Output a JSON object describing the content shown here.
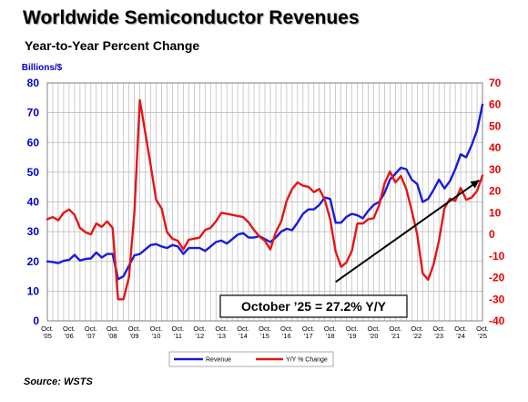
{
  "title": "Worldwide Semiconductor Revenues",
  "subtitle": "Year-to-Year Percent Change",
  "source": "Source: WSTS",
  "chart_data": {
    "type": "line",
    "left_axis": {
      "label": "Billions/$",
      "ylim": [
        0,
        80
      ],
      "ticks": [
        0,
        10,
        20,
        30,
        40,
        50,
        60,
        70,
        80
      ]
    },
    "right_axis": {
      "ylim": [
        -40,
        70
      ],
      "ticks": [
        -40,
        -30,
        -20,
        -10,
        0,
        10,
        20,
        30,
        40,
        50,
        60,
        70
      ]
    },
    "x_labels": [
      {
        "t": 2005.75,
        "l1": "Oct.",
        "l2": "'05"
      },
      {
        "t": 2006.75,
        "l1": "Oct.",
        "l2": "'06"
      },
      {
        "t": 2007.75,
        "l1": "Oct.",
        "l2": "'07"
      },
      {
        "t": 2008.75,
        "l1": "Oct.",
        "l2": "'08"
      },
      {
        "t": 2009.75,
        "l1": "Oct.",
        "l2": "'09"
      },
      {
        "t": 2010.75,
        "l1": "Oct.",
        "l2": "'10"
      },
      {
        "t": 2011.75,
        "l1": "Oct.",
        "l2": "'11"
      },
      {
        "t": 2012.75,
        "l1": "Oct.",
        "l2": "'12"
      },
      {
        "t": 2013.75,
        "l1": "Oct.",
        "l2": "'13"
      },
      {
        "t": 2014.75,
        "l1": "Oct.",
        "l2": "'14"
      },
      {
        "t": 2015.75,
        "l1": "Oct.",
        "l2": "'15"
      },
      {
        "t": 2016.75,
        "l1": "Oct.",
        "l2": "'16"
      },
      {
        "t": 2017.75,
        "l1": "Oct.",
        "l2": "'17"
      },
      {
        "t": 2018.75,
        "l1": "Oct.",
        "l2": "'18"
      },
      {
        "t": 2019.75,
        "l1": "Oct.",
        "l2": "'19"
      },
      {
        "t": 2020.75,
        "l1": "Oct.",
        "l2": "'20"
      },
      {
        "t": 2021.75,
        "l1": "Oct.",
        "l2": "'21"
      },
      {
        "t": 2022.75,
        "l1": "Oct.",
        "l2": "'22"
      },
      {
        "t": 2023.75,
        "l1": "Oct.",
        "l2": "'23"
      },
      {
        "t": 2024.75,
        "l1": "Oct.",
        "l2": "'24"
      },
      {
        "t": 2025.75,
        "l1": "Oct.",
        "l2": "'25"
      }
    ],
    "x_range": [
      2005.75,
      2025.75
    ],
    "series": [
      {
        "name": "Revenue",
        "axis": "left",
        "color": "#1a1adc",
        "points": [
          [
            2005.75,
            20
          ],
          [
            2006.0,
            19.8
          ],
          [
            2006.25,
            19.4
          ],
          [
            2006.5,
            20.2
          ],
          [
            2006.75,
            20.5
          ],
          [
            2007.0,
            22.2
          ],
          [
            2007.25,
            20.3
          ],
          [
            2007.5,
            20.8
          ],
          [
            2007.75,
            21
          ],
          [
            2008.0,
            23
          ],
          [
            2008.25,
            21.3
          ],
          [
            2008.5,
            22.5
          ],
          [
            2008.75,
            22.5
          ],
          [
            2009.0,
            14
          ],
          [
            2009.25,
            15
          ],
          [
            2009.5,
            18.5
          ],
          [
            2009.75,
            22
          ],
          [
            2010.0,
            22.5
          ],
          [
            2010.25,
            24
          ],
          [
            2010.5,
            25.5
          ],
          [
            2010.75,
            25.8
          ],
          [
            2011.0,
            25
          ],
          [
            2011.25,
            24.5
          ],
          [
            2011.5,
            25.5
          ],
          [
            2011.75,
            25
          ],
          [
            2012.0,
            22.5
          ],
          [
            2012.25,
            24.5
          ],
          [
            2012.5,
            24.5
          ],
          [
            2012.75,
            24.5
          ],
          [
            2013.0,
            23.5
          ],
          [
            2013.25,
            25
          ],
          [
            2013.5,
            26.5
          ],
          [
            2013.75,
            27
          ],
          [
            2014.0,
            26
          ],
          [
            2014.25,
            27.5
          ],
          [
            2014.5,
            29
          ],
          [
            2014.75,
            29.5
          ],
          [
            2015.0,
            28
          ],
          [
            2015.25,
            28
          ],
          [
            2015.5,
            28.5
          ],
          [
            2015.75,
            27.5
          ],
          [
            2016.0,
            26.5
          ],
          [
            2016.25,
            28
          ],
          [
            2016.5,
            30
          ],
          [
            2016.75,
            31
          ],
          [
            2017.0,
            30.5
          ],
          [
            2017.25,
            33
          ],
          [
            2017.5,
            36
          ],
          [
            2017.75,
            37.5
          ],
          [
            2018.0,
            37.5
          ],
          [
            2018.25,
            39
          ],
          [
            2018.5,
            41.5
          ],
          [
            2018.75,
            41
          ],
          [
            2019.0,
            33
          ],
          [
            2019.25,
            33
          ],
          [
            2019.5,
            35
          ],
          [
            2019.75,
            36
          ],
          [
            2020.0,
            35.5
          ],
          [
            2020.25,
            34.5
          ],
          [
            2020.5,
            37
          ],
          [
            2020.75,
            39
          ],
          [
            2021.0,
            40
          ],
          [
            2021.25,
            43
          ],
          [
            2021.5,
            47.5
          ],
          [
            2021.75,
            49.5
          ],
          [
            2022.0,
            51.5
          ],
          [
            2022.25,
            51
          ],
          [
            2022.5,
            47.5
          ],
          [
            2022.75,
            46
          ],
          [
            2023.0,
            40
          ],
          [
            2023.25,
            41
          ],
          [
            2023.5,
            44
          ],
          [
            2023.75,
            47.5
          ],
          [
            2024.0,
            44.5
          ],
          [
            2024.25,
            47
          ],
          [
            2024.5,
            51
          ],
          [
            2024.75,
            56
          ],
          [
            2025.0,
            55
          ],
          [
            2025.25,
            59
          ],
          [
            2025.5,
            64
          ],
          [
            2025.75,
            72.7
          ]
        ]
      },
      {
        "name": "Y/Y % Change",
        "axis": "right",
        "color": "#e51616",
        "points": [
          [
            2005.75,
            7
          ],
          [
            2006.0,
            8
          ],
          [
            2006.25,
            6.5
          ],
          [
            2006.5,
            10
          ],
          [
            2006.75,
            11.5
          ],
          [
            2007.0,
            9
          ],
          [
            2007.25,
            3
          ],
          [
            2007.5,
            1
          ],
          [
            2007.75,
            0
          ],
          [
            2008.0,
            5
          ],
          [
            2008.25,
            3.5
          ],
          [
            2008.5,
            6
          ],
          [
            2008.75,
            3
          ],
          [
            2009.0,
            -30
          ],
          [
            2009.25,
            -30
          ],
          [
            2009.5,
            -20
          ],
          [
            2009.75,
            10
          ],
          [
            2010.0,
            62
          ],
          [
            2010.25,
            47
          ],
          [
            2010.5,
            32
          ],
          [
            2010.75,
            16
          ],
          [
            2011.0,
            12
          ],
          [
            2011.25,
            1
          ],
          [
            2011.5,
            -2
          ],
          [
            2011.75,
            -3
          ],
          [
            2012.0,
            -7
          ],
          [
            2012.25,
            -2.5
          ],
          [
            2012.5,
            -2
          ],
          [
            2012.75,
            -1.5
          ],
          [
            2013.0,
            2
          ],
          [
            2013.25,
            3
          ],
          [
            2013.5,
            6
          ],
          [
            2013.75,
            10
          ],
          [
            2014.0,
            9.5
          ],
          [
            2014.25,
            9
          ],
          [
            2014.5,
            8.5
          ],
          [
            2014.75,
            8
          ],
          [
            2015.0,
            5.5
          ],
          [
            2015.25,
            2
          ],
          [
            2015.5,
            -1
          ],
          [
            2015.75,
            -3
          ],
          [
            2016.0,
            -7
          ],
          [
            2016.25,
            1
          ],
          [
            2016.5,
            6
          ],
          [
            2016.75,
            15.5
          ],
          [
            2017.0,
            21
          ],
          [
            2017.25,
            24
          ],
          [
            2017.5,
            22.5
          ],
          [
            2017.75,
            22
          ],
          [
            2018.0,
            19.5
          ],
          [
            2018.25,
            21
          ],
          [
            2018.5,
            16
          ],
          [
            2018.75,
            7
          ],
          [
            2019.0,
            -8
          ],
          [
            2019.25,
            -15
          ],
          [
            2019.5,
            -13
          ],
          [
            2019.75,
            -7.5
          ],
          [
            2020.0,
            5
          ],
          [
            2020.25,
            5
          ],
          [
            2020.5,
            7
          ],
          [
            2020.75,
            7.5
          ],
          [
            2021.0,
            13.5
          ],
          [
            2021.25,
            23.5
          ],
          [
            2021.5,
            29
          ],
          [
            2021.75,
            24
          ],
          [
            2022.0,
            27
          ],
          [
            2022.25,
            21
          ],
          [
            2022.5,
            11
          ],
          [
            2022.75,
            0
          ],
          [
            2023.0,
            -18
          ],
          [
            2023.25,
            -21
          ],
          [
            2023.5,
            -14
          ],
          [
            2023.75,
            -3
          ],
          [
            2024.0,
            12
          ],
          [
            2024.25,
            16.5
          ],
          [
            2024.5,
            15.5
          ],
          [
            2024.75,
            21.5
          ],
          [
            2025.0,
            16
          ],
          [
            2025.25,
            17
          ],
          [
            2025.5,
            20
          ],
          [
            2025.75,
            27.2
          ]
        ]
      }
    ],
    "annotation": "October ’25 = 27.2% Y/Y",
    "trend_arrow": {
      "from": [
        2019.0,
        -22
      ],
      "to": [
        2025.6,
        25
      ]
    },
    "legend": {
      "placement": "bottom-center",
      "entries": [
        "Revenue",
        "Y/Y % Change"
      ]
    },
    "grid": true
  }
}
